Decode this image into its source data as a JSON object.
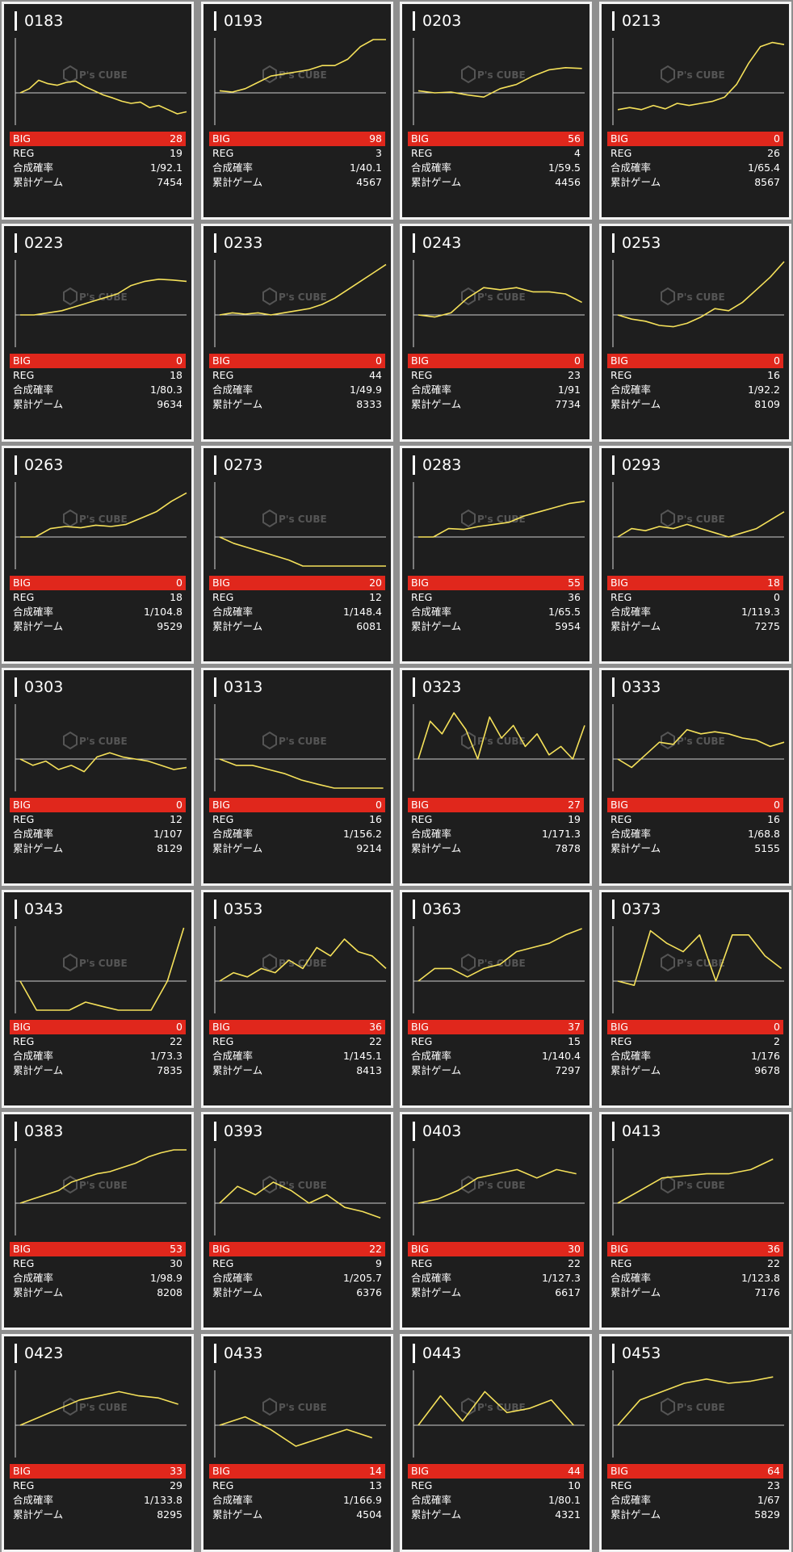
{
  "labels": {
    "big": "BIG",
    "reg": "REG",
    "rate": "合成確率",
    "games": "累計ゲーム"
  },
  "watermark": "P's CUBE",
  "colors": {
    "line": "#f5e15a",
    "big_bar": "#e0271c",
    "card_bg": "#1e1e1e",
    "border": "#f2f2f2"
  },
  "machines": [
    {
      "id": "0183",
      "big": "28",
      "reg": "19",
      "rate": "1/92.1",
      "games": "7454",
      "trend": [
        0.5,
        0.4,
        0.2,
        0.28,
        0.32,
        0.25,
        0.22,
        0.35,
        0.45,
        0.55,
        0.62,
        0.7,
        0.75,
        0.72,
        0.85,
        0.8,
        0.9,
        1.0,
        0.95
      ]
    },
    {
      "id": "0193",
      "big": "98",
      "reg": "3",
      "rate": "1/40.1",
      "games": "4567",
      "trend": [
        0.45,
        0.48,
        0.4,
        0.25,
        0.1,
        0.05,
        0.0,
        -0.05,
        -0.15,
        -0.15,
        -0.3,
        -0.6,
        -0.85,
        -1.0
      ]
    },
    {
      "id": "0203",
      "big": "56",
      "reg": "4",
      "rate": "1/59.5",
      "games": "4456",
      "trend": [
        0.45,
        0.5,
        0.48,
        0.55,
        0.6,
        0.4,
        0.3,
        0.1,
        -0.05,
        -0.1,
        -0.08
      ]
    },
    {
      "id": "0213",
      "big": "0",
      "reg": "26",
      "rate": "1/65.4",
      "games": "8567",
      "trend": [
        0.9,
        0.85,
        0.9,
        0.8,
        0.88,
        0.75,
        0.8,
        0.75,
        0.7,
        0.6,
        0.3,
        -0.2,
        -0.6,
        -0.7,
        -0.65
      ]
    },
    {
      "id": "0223",
      "big": "0",
      "reg": "18",
      "rate": "1/80.3",
      "games": "9634",
      "trend": [
        0.5,
        0.5,
        0.45,
        0.4,
        0.3,
        0.2,
        0.1,
        0.0,
        -0.2,
        -0.3,
        -0.35,
        -0.33,
        -0.3
      ]
    },
    {
      "id": "0233",
      "big": "0",
      "reg": "44",
      "rate": "1/49.9",
      "games": "8333",
      "trend": [
        0.5,
        0.45,
        0.48,
        0.45,
        0.5,
        0.45,
        0.4,
        0.35,
        0.25,
        0.1,
        -0.1,
        -0.3,
        -0.5,
        -0.7
      ]
    },
    {
      "id": "0243",
      "big": "0",
      "reg": "23",
      "rate": "1/91",
      "games": "7734",
      "trend": [
        0.5,
        0.55,
        0.45,
        0.1,
        -0.15,
        -0.1,
        -0.15,
        -0.05,
        -0.05,
        0.0,
        0.2
      ]
    },
    {
      "id": "0253",
      "big": "0",
      "reg": "16",
      "rate": "1/92.2",
      "games": "8109",
      "trend": [
        0.5,
        0.6,
        0.65,
        0.75,
        0.78,
        0.7,
        0.55,
        0.35,
        0.4,
        0.2,
        -0.1,
        -0.4,
        -0.8
      ]
    },
    {
      "id": "0263",
      "big": "0",
      "reg": "18",
      "rate": "1/104.8",
      "games": "9529",
      "trend": [
        0.5,
        0.5,
        0.3,
        0.25,
        0.28,
        0.22,
        0.25,
        0.2,
        0.05,
        -0.1,
        -0.35,
        -0.55
      ]
    },
    {
      "id": "0273",
      "big": "20",
      "reg": "12",
      "rate": "1/148.4",
      "games": "6081",
      "trend": [
        0.5,
        0.65,
        0.75,
        0.85,
        0.95,
        1.05,
        1.2,
        1.35,
        1.5,
        1.45,
        1.3,
        1.5,
        1.55
      ]
    },
    {
      "id": "0283",
      "big": "55",
      "reg": "36",
      "rate": "1/65.5",
      "games": "5954",
      "trend": [
        0.5,
        0.5,
        0.3,
        0.32,
        0.25,
        0.2,
        0.15,
        0.0,
        -0.1,
        -0.2,
        -0.3,
        -0.35
      ]
    },
    {
      "id": "0293",
      "big": "18",
      "reg": "0",
      "rate": "1/119.3",
      "games": "7275",
      "trend": [
        0.5,
        0.3,
        0.35,
        0.25,
        0.3,
        0.2,
        0.3,
        0.4,
        0.5,
        0.4,
        0.3,
        0.1,
        -0.1
      ]
    },
    {
      "id": "0303",
      "big": "0",
      "reg": "12",
      "rate": "1/107",
      "games": "8129",
      "trend": [
        0.5,
        0.65,
        0.55,
        0.75,
        0.65,
        0.8,
        0.45,
        0.35,
        0.45,
        0.5,
        0.55,
        0.65,
        0.75,
        0.7
      ]
    },
    {
      "id": "0313",
      "big": "0",
      "reg": "16",
      "rate": "1/156.2",
      "games": "9214",
      "trend": [
        0.5,
        0.65,
        0.65,
        0.75,
        0.85,
        1.0,
        1.1,
        1.2,
        1.35,
        1.4,
        1.55
      ]
    },
    {
      "id": "0323",
      "big": "27",
      "reg": "19",
      "rate": "1/171.3",
      "games": "7878",
      "trend": [
        0.5,
        -0.4,
        -0.1,
        -0.6,
        -0.2,
        0.5,
        -0.5,
        0.0,
        -0.3,
        0.2,
        -0.1,
        0.4,
        0.2,
        0.5,
        -0.3
      ]
    },
    {
      "id": "0333",
      "big": "0",
      "reg": "16",
      "rate": "1/68.8",
      "games": "5155",
      "trend": [
        0.5,
        0.7,
        0.4,
        0.1,
        0.15,
        -0.2,
        -0.1,
        -0.15,
        -0.1,
        0.0,
        0.05,
        0.2,
        0.1
      ]
    },
    {
      "id": "0343",
      "big": "0",
      "reg": "22",
      "rate": "1/73.3",
      "games": "7835",
      "trend": [
        0.5,
        1.2,
        1.4,
        1.5,
        1.0,
        1.1,
        1.5,
        1.8,
        1.5,
        0.5,
        -1.6
      ]
    },
    {
      "id": "0353",
      "big": "36",
      "reg": "22",
      "rate": "1/145.1",
      "games": "8413",
      "trend": [
        0.5,
        0.3,
        0.4,
        0.2,
        0.3,
        0.0,
        0.2,
        -0.3,
        -0.1,
        -0.5,
        -0.2,
        -0.1,
        0.2
      ]
    },
    {
      "id": "0363",
      "big": "37",
      "reg": "15",
      "rate": "1/140.4",
      "games": "7297",
      "trend": [
        0.5,
        0.2,
        0.2,
        0.4,
        0.2,
        0.1,
        -0.2,
        -0.3,
        -0.4,
        -0.6,
        -0.75
      ]
    },
    {
      "id": "0373",
      "big": "0",
      "reg": "2",
      "rate": "1/176",
      "games": "9678",
      "trend": [
        0.5,
        0.6,
        -0.7,
        -0.4,
        -0.2,
        -0.6,
        0.5,
        -0.6,
        -0.6,
        -0.1,
        0.2
      ]
    },
    {
      "id": "0383",
      "big": "53",
      "reg": "30",
      "rate": "1/98.9",
      "games": "8208",
      "trend": [
        0.5,
        0.4,
        0.3,
        0.2,
        0.0,
        -0.1,
        -0.2,
        -0.25,
        -0.35,
        -0.45,
        -0.6,
        -0.7,
        -0.85,
        -1.05
      ]
    },
    {
      "id": "0393",
      "big": "22",
      "reg": "9",
      "rate": "1/205.7",
      "games": "6376",
      "trend": [
        0.5,
        0.1,
        0.3,
        0.0,
        0.2,
        0.5,
        0.3,
        0.6,
        0.7,
        0.85
      ]
    },
    {
      "id": "0403",
      "big": "30",
      "reg": "22",
      "rate": "1/127.3",
      "games": "6617",
      "trend": [
        0.5,
        0.4,
        0.2,
        -0.1,
        -0.2,
        -0.3,
        -0.1,
        -0.3,
        -0.2
      ]
    },
    {
      "id": "0413",
      "big": "36",
      "reg": "22",
      "rate": "1/123.8",
      "games": "7176",
      "trend": [
        0.5,
        0.2,
        -0.1,
        -0.15,
        -0.2,
        -0.2,
        -0.3,
        -0.55
      ]
    },
    {
      "id": "0423",
      "big": "33",
      "reg": "29",
      "rate": "1/133.8",
      "games": "8295",
      "trend": [
        0.5,
        0.3,
        0.1,
        -0.1,
        -0.2,
        -0.3,
        -0.2,
        -0.15,
        0.0
      ]
    },
    {
      "id": "0433",
      "big": "14",
      "reg": "13",
      "rate": "1/166.9",
      "games": "4504",
      "trend": [
        0.5,
        0.3,
        0.6,
        1.0,
        0.8,
        0.6,
        0.8
      ]
    },
    {
      "id": "0443",
      "big": "44",
      "reg": "10",
      "rate": "1/80.1",
      "games": "4321",
      "trend": [
        0.5,
        -0.2,
        0.4,
        -0.3,
        0.2,
        0.1,
        -0.1,
        0.5
      ]
    },
    {
      "id": "0453",
      "big": "64",
      "reg": "23",
      "rate": "1/67",
      "games": "5829",
      "trend": [
        0.5,
        -0.1,
        -0.3,
        -0.5,
        -0.6,
        -0.5,
        -0.55,
        -0.65
      ]
    }
  ]
}
